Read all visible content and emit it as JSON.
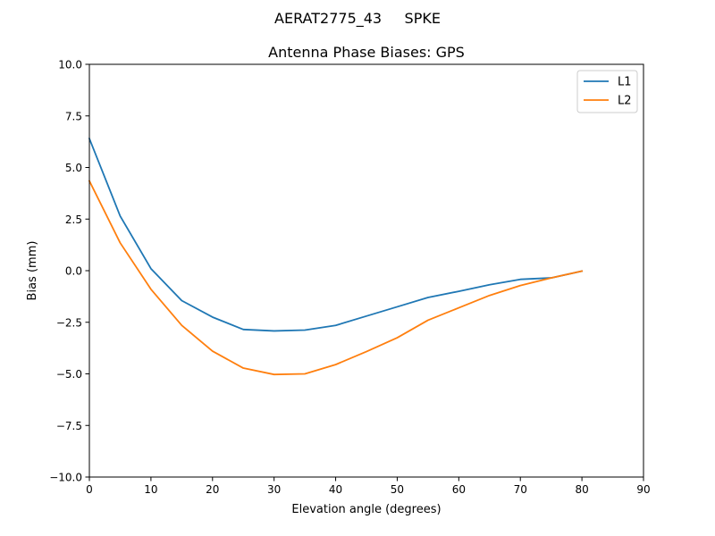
{
  "chart_data": {
    "type": "line",
    "suptitle": "AERAT2775_43     SPKE",
    "title": "Antenna Phase Biases: GPS",
    "xlabel": "Elevation angle (degrees)",
    "ylabel": "Bias (mm)",
    "xlim": [
      0,
      90
    ],
    "ylim": [
      -10,
      10
    ],
    "xticks": [
      0,
      10,
      20,
      30,
      40,
      50,
      60,
      70,
      80,
      90
    ],
    "xtick_labels": [
      "0",
      "10",
      "20",
      "30",
      "40",
      "50",
      "60",
      "70",
      "80",
      "90"
    ],
    "yticks": [
      -10,
      -7.5,
      -5,
      -2.5,
      0,
      2.5,
      5,
      7.5,
      10
    ],
    "ytick_labels": [
      "−10.0",
      "−7.5",
      "−5.0",
      "−2.5",
      "0.0",
      "2.5",
      "5.0",
      "7.5",
      "10.0"
    ],
    "grid": false,
    "legend_position": "top-right",
    "x": [
      0,
      5,
      10,
      15,
      20,
      25,
      30,
      35,
      40,
      45,
      50,
      55,
      60,
      65,
      70,
      75,
      80
    ],
    "series": [
      {
        "name": "L1",
        "color": "#1f77b4",
        "values": [
          6.4,
          2.65,
          0.1,
          -1.45,
          -2.25,
          -2.85,
          -2.92,
          -2.88,
          -2.65,
          -2.2,
          -1.75,
          -1.3,
          -1.0,
          -0.68,
          -0.42,
          -0.35,
          -0.02
        ]
      },
      {
        "name": "L2",
        "color": "#ff7f0e",
        "values": [
          4.35,
          1.35,
          -0.9,
          -2.65,
          -3.9,
          -4.72,
          -5.03,
          -5.0,
          -4.55,
          -3.92,
          -3.25,
          -2.4,
          -1.8,
          -1.2,
          -0.72,
          -0.35,
          -0.02
        ]
      }
    ]
  }
}
